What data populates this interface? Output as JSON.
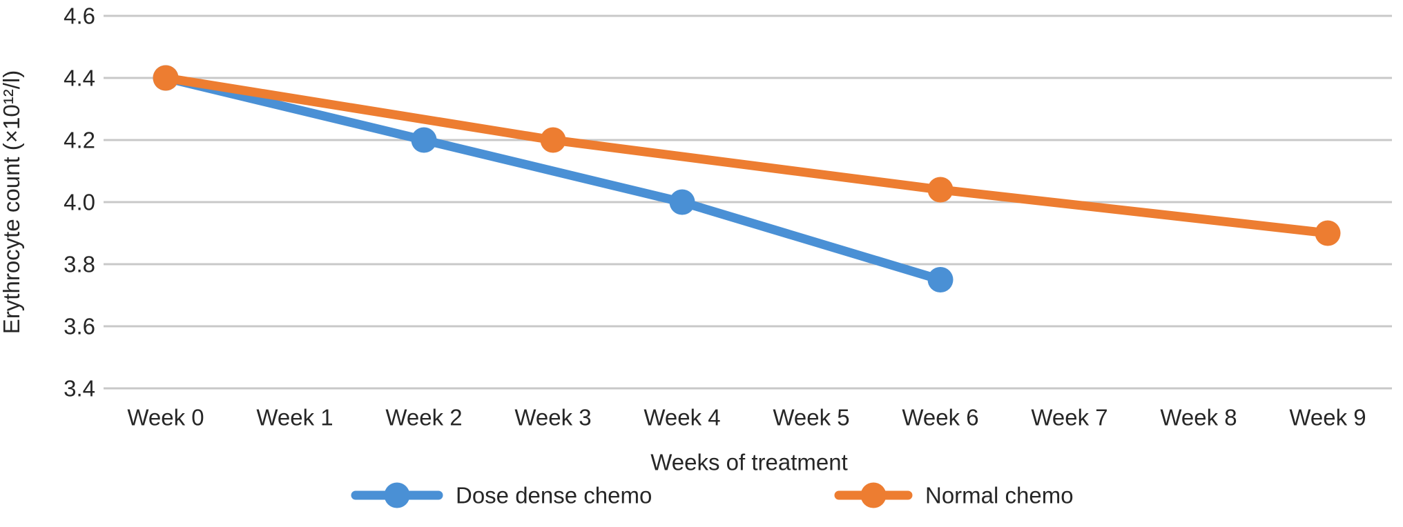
{
  "chart_data": {
    "type": "line",
    "title": "",
    "xlabel": "Weeks of treatment",
    "ylabel": "Erythrocyte count (×10¹²/l)",
    "categories": [
      "Week 0",
      "Week 1",
      "Week 2",
      "Week 3",
      "Week 4",
      "Week 5",
      "Week 6",
      "Week 7",
      "Week 8",
      "Week 9"
    ],
    "y_tick_labels": [
      "4.6",
      "4.4",
      "4.2",
      "4.0",
      "3.8",
      "3.6",
      "3.4"
    ],
    "ylim": [
      3.4,
      4.6
    ],
    "grid": "horizontal-only",
    "legend_position": "bottom",
    "series": [
      {
        "name": "Dose dense chemo",
        "color": "#4a90d5",
        "points": [
          {
            "week_index": 0,
            "value": 4.4
          },
          {
            "week_index": 2,
            "value": 4.2
          },
          {
            "week_index": 4,
            "value": 4.0
          },
          {
            "week_index": 6,
            "value": 3.75
          }
        ]
      },
      {
        "name": "Normal chemo",
        "color": "#ed7d31",
        "points": [
          {
            "week_index": 0,
            "value": 4.4
          },
          {
            "week_index": 3,
            "value": 4.2
          },
          {
            "week_index": 6,
            "value": 4.04
          },
          {
            "week_index": 9,
            "value": 3.9
          }
        ]
      }
    ],
    "colors": {
      "gridline": "#c8c8c8",
      "text": "#262626",
      "background": "#ffffff"
    }
  }
}
